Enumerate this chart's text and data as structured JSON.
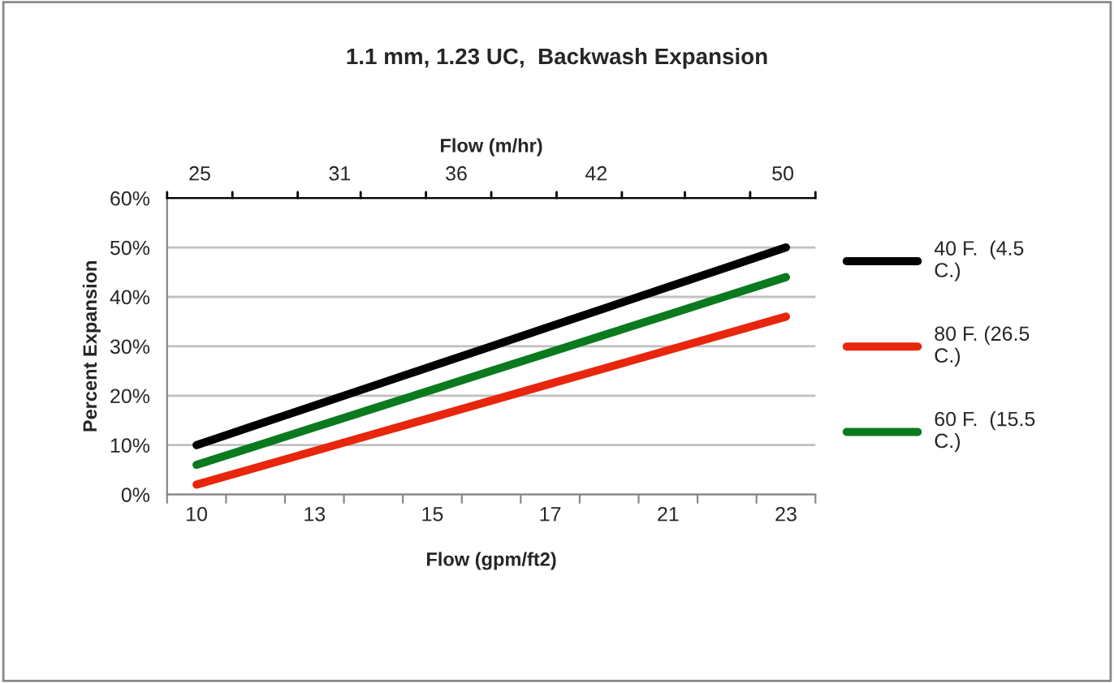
{
  "chart_data": {
    "type": "line",
    "title": "1.1 mm, 1.23 UC,  Backwash Expansion",
    "xlabel": "Flow (gpm/ft2)",
    "ylabel": "Percent Expansion",
    "x2label": "Flow (m/hr)",
    "categories": [
      "10",
      null,
      "13",
      null,
      "15",
      null,
      "17",
      null,
      "21",
      null,
      "23"
    ],
    "series": [
      {
        "name": "40 F.  (4.5 C.)",
        "color": "#000000",
        "values": [
          10,
          14,
          18,
          22,
          26,
          30,
          34,
          38,
          42,
          46,
          50
        ]
      },
      {
        "name": "80 F. (26.5 C.)",
        "color": "#e8260c",
        "values": [
          2,
          5.4,
          8.8,
          12.2,
          15.6,
          19,
          22.4,
          25.8,
          29.2,
          32.6,
          36
        ]
      },
      {
        "name": "60 F.  (15.5 C.)",
        "color": "#0a7a1e",
        "values": [
          6,
          9.8,
          13.6,
          17.4,
          21.2,
          25,
          28.8,
          32.6,
          36.4,
          40.2,
          44
        ]
      }
    ],
    "ylim": [
      0,
      60
    ],
    "yticks": [
      {
        "value": 0,
        "label": "0%"
      },
      {
        "value": 10,
        "label": "10%"
      },
      {
        "value": 20,
        "label": "20%"
      },
      {
        "value": 30,
        "label": "30%"
      },
      {
        "value": 40,
        "label": "40%"
      },
      {
        "value": 50,
        "label": "50%"
      },
      {
        "value": 60,
        "label": "60%"
      }
    ],
    "x2lim": [
      23.6,
      51.4
    ],
    "x2ticks": [
      25,
      31,
      36,
      42,
      50,
      {
        "value": 23.6,
        "label": null
      },
      {
        "value": 26.4,
        "label": null
      },
      {
        "value": 29.2,
        "label": null
      },
      {
        "value": 31.9,
        "label": null
      },
      {
        "value": 34.7,
        "label": null
      },
      {
        "value": 37.5,
        "label": null
      },
      {
        "value": 40.3,
        "label": null
      },
      {
        "value": 43.1,
        "label": null
      },
      {
        "value": 45.8,
        "label": null
      },
      {
        "value": 48.6,
        "label": null
      },
      {
        "value": 51.4,
        "label": null
      }
    ],
    "grid": "y",
    "legend": "right",
    "marker": "none",
    "line_style": "solid"
  }
}
